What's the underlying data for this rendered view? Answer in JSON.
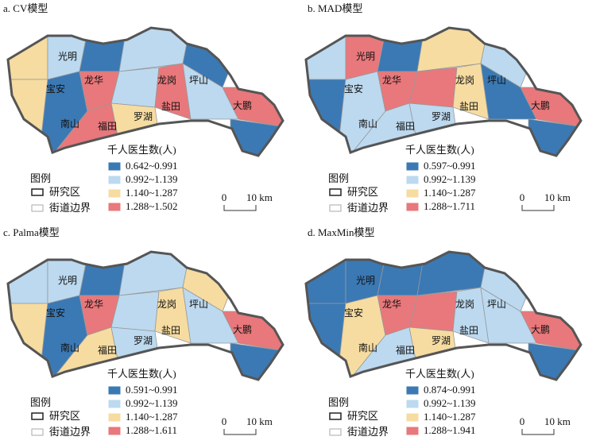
{
  "districts": [
    "光明",
    "宝安",
    "龙华",
    "龙岗",
    "坪山",
    "南山",
    "福田",
    "罗湖",
    "盐田",
    "大鹏"
  ],
  "legend_header": "图例",
  "study_area": "研究区",
  "street_boundary": "街道边界",
  "scale_start": "0",
  "scale_end": "10 km",
  "panels": [
    {
      "title": "a. CV模型",
      "legend_title": "千人医生数(人)",
      "legend_items": [
        {
          "label": "0.642~0.991",
          "color": "#3b79b4"
        },
        {
          "label": "0.992~1.139",
          "color": "#bcd9ef"
        },
        {
          "label": "1.140~1.287",
          "color": "#f6dca1"
        },
        {
          "label": "1.288~1.502",
          "color": "#e8787b"
        }
      ]
    },
    {
      "title": "b. MAD模型",
      "legend_title": "千人医生数(人)",
      "legend_items": [
        {
          "label": "0.597~0.991",
          "color": "#3b79b4"
        },
        {
          "label": "0.992~1.139",
          "color": "#bcd9ef"
        },
        {
          "label": "1.140~1.287",
          "color": "#f6dca1"
        },
        {
          "label": "1.288~1.711",
          "color": "#e8787b"
        }
      ]
    },
    {
      "title": "c. Palma模型",
      "legend_title": "千人医生数(人)",
      "legend_items": [
        {
          "label": "0.591~0.991",
          "color": "#3b79b4"
        },
        {
          "label": "0.992~1.139",
          "color": "#bcd9ef"
        },
        {
          "label": "1.140~1.287",
          "color": "#f6dca1"
        },
        {
          "label": "1.288~1.611",
          "color": "#e8787b"
        }
      ]
    },
    {
      "title": "d. MaxMin模型",
      "legend_title": "千人医生数(人)",
      "legend_items": [
        {
          "label": "0.874~0.991",
          "color": "#3b79b4"
        },
        {
          "label": "0.992~1.139",
          "color": "#bcd9ef"
        },
        {
          "label": "1.140~1.287",
          "color": "#f6dca1"
        },
        {
          "label": "1.288~1.941",
          "color": "#e8787b"
        }
      ]
    }
  ]
}
